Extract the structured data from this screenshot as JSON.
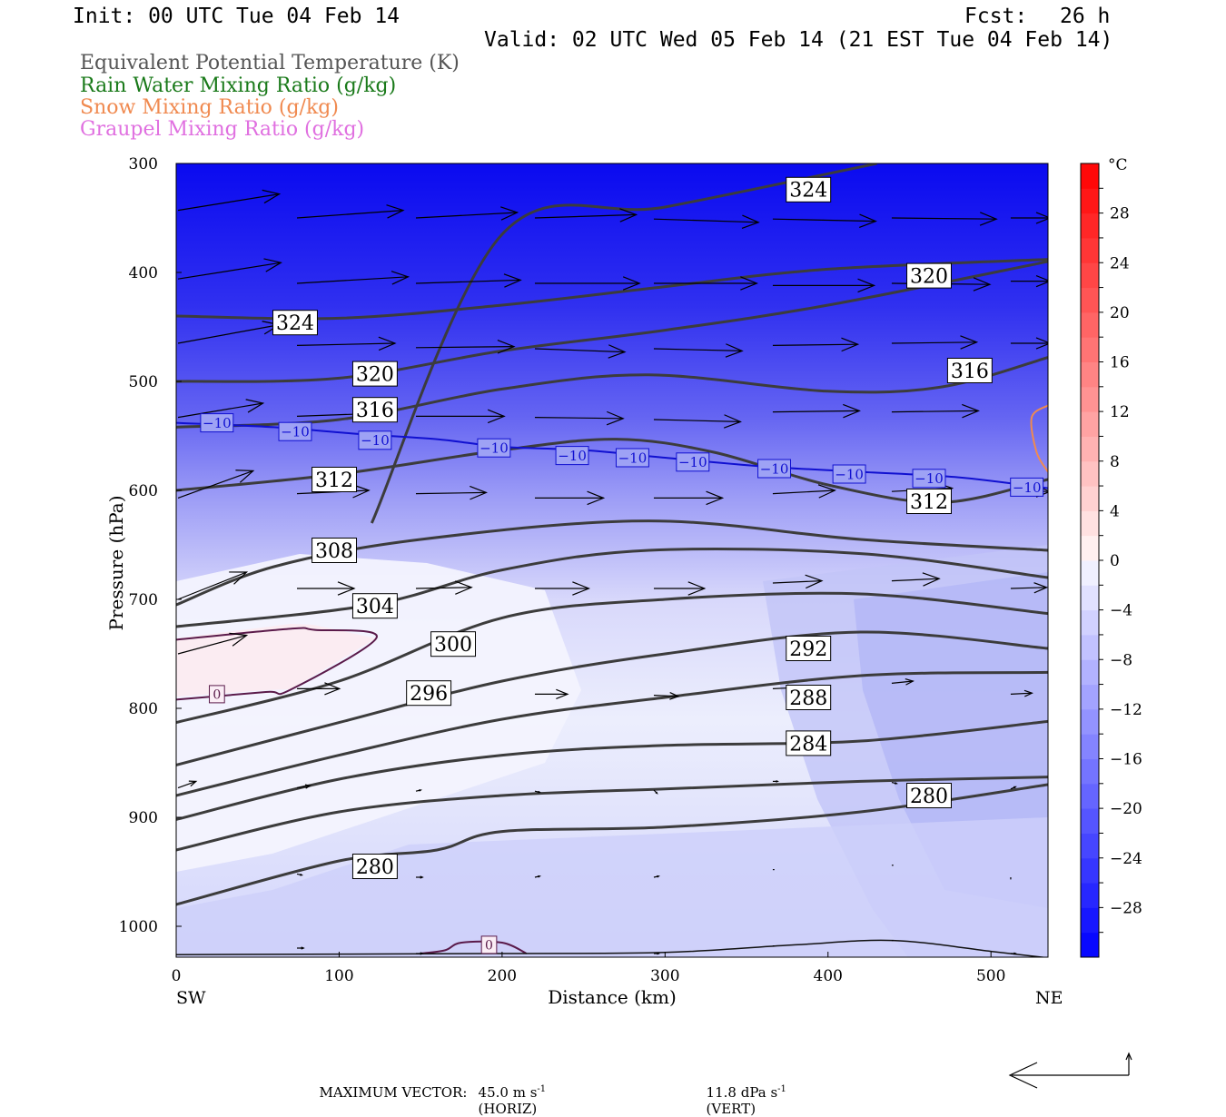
{
  "header": {
    "init": "Init: 00 UTC Tue 04 Feb 14",
    "fcst_label": "Fcst:",
    "fcst_value": "26 h",
    "valid": "Valid: 02 UTC Wed 05 Feb 14 (21 EST Tue 04 Feb 14)"
  },
  "legend": [
    {
      "label": "Equivalent Potential Temperature (K)",
      "color": "#555555"
    },
    {
      "label": "Rain Water Mixing Ratio (g/kg)",
      "color": "#1a7a1a"
    },
    {
      "label": "Snow Mixing Ratio (g/kg)",
      "color": "#f08a50"
    },
    {
      "label": "Graupel Mixing Ratio (g/kg)",
      "color": "#e070e0"
    }
  ],
  "footer": {
    "max_vector_label": "MAXIMUM VECTOR:",
    "horiz_value": "45.0 m s",
    "horiz_sup": "-1",
    "horiz_tag": "(HORIZ)",
    "vert_value": "11.8 dPa s",
    "vert_sup": "-1",
    "vert_tag": "(VERT)"
  },
  "chart_data": {
    "type": "cross-section",
    "xlabel": "Distance (km)",
    "ylabel": "Pressure (hPa)",
    "x_ticks": [
      0,
      100,
      200,
      300,
      400,
      500
    ],
    "y_ticks": [
      300,
      400,
      500,
      600,
      700,
      800,
      900,
      1000
    ],
    "xlim": [
      0,
      535
    ],
    "ylim": [
      1030,
      300
    ],
    "x_end_labels": {
      "left": "SW",
      "right": "NE"
    },
    "colorbar": {
      "unit": "°C",
      "tick_labels": [
        "28",
        "24",
        "20",
        "16",
        "12",
        "8",
        "4",
        "0",
        "−4",
        "−8",
        "−12",
        "−16",
        "−20",
        "−24",
        "−28"
      ],
      "tick_values": [
        28,
        24,
        20,
        16,
        12,
        8,
        4,
        0,
        -4,
        -8,
        -12,
        -16,
        -20,
        -24,
        -28
      ],
      "range": [
        -32,
        32
      ],
      "step": 2
    },
    "theta_e_contours": [
      {
        "label": "324",
        "points": [
          [
            0,
            440
          ],
          [
            100,
            442
          ],
          [
            200,
            430
          ],
          [
            300,
            413
          ],
          [
            400,
            397
          ],
          [
            535,
            388
          ]
        ],
        "labels_at": [
          [
            73,
            446
          ]
        ]
      },
      {
        "label": "324",
        "points": [
          [
            120,
            630
          ],
          [
            200,
            365
          ],
          [
            300,
            340
          ],
          [
            430,
            300
          ]
        ],
        "labels_at": [
          [
            388,
            324
          ]
        ]
      },
      {
        "label": "320",
        "points": [
          [
            0,
            500
          ],
          [
            100,
            497
          ],
          [
            200,
            472
          ],
          [
            300,
            453
          ],
          [
            400,
            430
          ],
          [
            535,
            390
          ]
        ],
        "labels_at": [
          [
            122,
            493
          ],
          [
            462,
            403
          ]
        ]
      },
      {
        "label": "316",
        "points": [
          [
            0,
            542
          ],
          [
            100,
            535
          ],
          [
            200,
            507
          ],
          [
            290,
            494
          ],
          [
            400,
            509
          ],
          [
            470,
            505
          ],
          [
            535,
            478
          ]
        ],
        "labels_at": [
          [
            122,
            526
          ],
          [
            487,
            490
          ]
        ]
      },
      {
        "label": "312",
        "points": [
          [
            0,
            600
          ],
          [
            100,
            585
          ],
          [
            200,
            563
          ],
          [
            270,
            553
          ],
          [
            330,
            565
          ],
          [
            400,
            595
          ],
          [
            470,
            611
          ],
          [
            535,
            590
          ]
        ],
        "labels_at": [
          [
            97,
            590
          ],
          [
            462,
            610
          ]
        ]
      },
      {
        "label": "308",
        "points": [
          [
            0,
            705
          ],
          [
            60,
            670
          ],
          [
            150,
            645
          ],
          [
            290,
            628
          ],
          [
            420,
            645
          ],
          [
            535,
            655
          ]
        ],
        "labels_at": [
          [
            97,
            655
          ]
        ]
      },
      {
        "label": "304",
        "points": [
          [
            0,
            725
          ],
          [
            120,
            705
          ],
          [
            200,
            673
          ],
          [
            290,
            655
          ],
          [
            420,
            658
          ],
          [
            535,
            680
          ]
        ],
        "labels_at": [
          [
            122,
            706
          ]
        ]
      },
      {
        "label": "300",
        "points": [
          [
            0,
            813
          ],
          [
            100,
            775
          ],
          [
            200,
            717
          ],
          [
            300,
            700
          ],
          [
            420,
            695
          ],
          [
            535,
            713
          ]
        ],
        "labels_at": [
          [
            170,
            741
          ]
        ]
      },
      {
        "label": "296",
        "points": [
          [
            0,
            852
          ],
          [
            100,
            813
          ],
          [
            200,
            775
          ],
          [
            300,
            750
          ],
          [
            420,
            730
          ],
          [
            535,
            745
          ]
        ],
        "labels_at": [
          [
            155,
            786
          ]
        ]
      },
      {
        "label": "292",
        "points": [
          [
            0,
            880
          ],
          [
            100,
            843
          ],
          [
            200,
            810
          ],
          [
            300,
            790
          ],
          [
            420,
            770
          ],
          [
            535,
            767
          ]
        ],
        "labels_at": [
          [
            388,
            745
          ]
        ]
      },
      {
        "label": "288",
        "points": [
          [
            0,
            902
          ],
          [
            100,
            865
          ],
          [
            200,
            843
          ],
          [
            300,
            834
          ],
          [
            420,
            830
          ],
          [
            535,
            812
          ]
        ],
        "labels_at": [
          [
            388,
            790
          ]
        ]
      },
      {
        "label": "284",
        "points": [
          [
            0,
            930
          ],
          [
            100,
            895
          ],
          [
            200,
            880
          ],
          [
            300,
            874
          ],
          [
            420,
            867
          ],
          [
            535,
            863
          ]
        ],
        "labels_at": [
          [
            388,
            832
          ]
        ]
      },
      {
        "label": "280",
        "points": [
          [
            0,
            980
          ],
          [
            100,
            940
          ],
          [
            160,
            930
          ],
          [
            200,
            913
          ],
          [
            300,
            909
          ],
          [
            420,
            895
          ],
          [
            535,
            870
          ]
        ],
        "labels_at": [
          [
            122,
            945
          ],
          [
            462,
            880
          ]
        ]
      },
      {
        "label": "",
        "points": [
          [
            0,
            1026
          ],
          [
            200,
            1025
          ],
          [
            300,
            1024
          ],
          [
            380,
            1017
          ],
          [
            440,
            1013
          ],
          [
            500,
            1023
          ],
          [
            535,
            1029
          ]
        ],
        "labels_at": []
      }
    ],
    "temp_isotherm_m10": {
      "label": "−10",
      "points": [
        [
          0,
          538
        ],
        [
          60,
          542
        ],
        [
          110,
          548
        ],
        [
          160,
          553
        ],
        [
          200,
          560
        ],
        [
          250,
          563
        ],
        [
          300,
          570
        ],
        [
          360,
          578
        ],
        [
          420,
          583
        ],
        [
          480,
          588
        ],
        [
          535,
          598
        ]
      ],
      "labels_at": [
        [
          25,
          538
        ],
        [
          73,
          546
        ],
        [
          122,
          554
        ],
        [
          195,
          561
        ],
        [
          243,
          568
        ],
        [
          280,
          570
        ],
        [
          317,
          574
        ],
        [
          367,
          580
        ],
        [
          413,
          585
        ],
        [
          462,
          589
        ],
        [
          522,
          597
        ]
      ]
    },
    "rain_zero_contour": {
      "label": "0",
      "points": [
        [
          0,
          737
        ],
        [
          70,
          727
        ],
        [
          85,
          728
        ],
        [
          123,
          735
        ],
        [
          70,
          783
        ],
        [
          55,
          785
        ],
        [
          0,
          792
        ]
      ],
      "labels_at": [
        [
          25,
          787
        ]
      ]
    },
    "rain_zero_contour_surface": {
      "label": "0",
      "points": [
        [
          150,
          1025
        ],
        [
          165,
          1022
        ],
        [
          175,
          1015
        ],
        [
          200,
          1015
        ],
        [
          215,
          1025
        ]
      ],
      "labels_at": [
        [
          192,
          1017
        ]
      ]
    },
    "snow_contour": {
      "points": [
        [
          535,
          522
        ],
        [
          525,
          533
        ],
        [
          528,
          565
        ],
        [
          535,
          583
        ]
      ]
    },
    "wind_vectors": [
      {
        "x": 0,
        "p": 343,
        "dx": 62,
        "dp": -15
      },
      {
        "x": 73,
        "p": 350,
        "dx": 65,
        "dp": -7
      },
      {
        "x": 146,
        "p": 350,
        "dx": 62,
        "dp": -5
      },
      {
        "x": 219,
        "p": 350,
        "dx": 62,
        "dp": -3
      },
      {
        "x": 292,
        "p": 351,
        "dx": 64,
        "dp": 3
      },
      {
        "x": 365,
        "p": 351,
        "dx": 63,
        "dp": 2
      },
      {
        "x": 438,
        "p": 350,
        "dx": 64,
        "dp": 1
      },
      {
        "x": 511,
        "p": 350,
        "dx": 24,
        "dp": 0
      },
      {
        "x": 0,
        "p": 406,
        "dx": 63,
        "dp": -15
      },
      {
        "x": 73,
        "p": 410,
        "dx": 68,
        "dp": -6
      },
      {
        "x": 146,
        "p": 410,
        "dx": 64,
        "dp": -3
      },
      {
        "x": 219,
        "p": 410,
        "dx": 64,
        "dp": 0
      },
      {
        "x": 292,
        "p": 410,
        "dx": 63,
        "dp": 0
      },
      {
        "x": 365,
        "p": 412,
        "dx": 62,
        "dp": 0
      },
      {
        "x": 438,
        "p": 410,
        "dx": 60,
        "dp": 1
      },
      {
        "x": 511,
        "p": 408,
        "dx": 24,
        "dp": 0
      },
      {
        "x": 0,
        "p": 465,
        "dx": 62,
        "dp": -17
      },
      {
        "x": 73,
        "p": 467,
        "dx": 60,
        "dp": -2
      },
      {
        "x": 146,
        "p": 469,
        "dx": 60,
        "dp": -1
      },
      {
        "x": 219,
        "p": 470,
        "dx": 55,
        "dp": 3
      },
      {
        "x": 292,
        "p": 470,
        "dx": 54,
        "dp": 2
      },
      {
        "x": 365,
        "p": 467,
        "dx": 52,
        "dp": -1
      },
      {
        "x": 438,
        "p": 465,
        "dx": 52,
        "dp": -1
      },
      {
        "x": 511,
        "p": 465,
        "dx": 24,
        "dp": 0
      },
      {
        "x": 0,
        "p": 533,
        "dx": 52,
        "dp": -13
      },
      {
        "x": 73,
        "p": 532,
        "dx": 55,
        "dp": -3
      },
      {
        "x": 146,
        "p": 532,
        "dx": 54,
        "dp": 0
      },
      {
        "x": 219,
        "p": 533,
        "dx": 54,
        "dp": 1
      },
      {
        "x": 292,
        "p": 535,
        "dx": 53,
        "dp": 2
      },
      {
        "x": 365,
        "p": 528,
        "dx": 53,
        "dp": -1
      },
      {
        "x": 438,
        "p": 528,
        "dx": 53,
        "dp": -1
      },
      {
        "x": 0,
        "p": 607,
        "dx": 46,
        "dp": -25
      },
      {
        "x": 73,
        "p": 603,
        "dx": 44,
        "dp": -3
      },
      {
        "x": 146,
        "p": 603,
        "dx": 43,
        "dp": -1
      },
      {
        "x": 219,
        "p": 607,
        "dx": 42,
        "dp": 0
      },
      {
        "x": 292,
        "p": 607,
        "dx": 42,
        "dp": 0
      },
      {
        "x": 365,
        "p": 603,
        "dx": 38,
        "dp": -3
      },
      {
        "x": 438,
        "p": 601,
        "dx": 37,
        "dp": -3
      },
      {
        "x": 511,
        "p": 601,
        "dx": 24,
        "dp": 0
      },
      {
        "x": 0,
        "p": 700,
        "dx": 42,
        "dp": -25
      },
      {
        "x": 73,
        "p": 690,
        "dx": 35,
        "dp": 0
      },
      {
        "x": 146,
        "p": 690,
        "dx": 34,
        "dp": -1
      },
      {
        "x": 219,
        "p": 690,
        "dx": 33,
        "dp": 0
      },
      {
        "x": 292,
        "p": 690,
        "dx": 31,
        "dp": 0
      },
      {
        "x": 365,
        "p": 685,
        "dx": 30,
        "dp": -2
      },
      {
        "x": 438,
        "p": 683,
        "dx": 29,
        "dp": -2
      },
      {
        "x": 511,
        "p": 690,
        "dx": 22,
        "dp": -1
      },
      {
        "x": 0,
        "p": 750,
        "dx": 42,
        "dp": -17
      },
      {
        "x": 73,
        "p": 782,
        "dx": 26,
        "dp": 0
      },
      {
        "x": 219,
        "p": 787,
        "dx": 20,
        "dp": 0
      },
      {
        "x": 292,
        "p": 788,
        "dx": 15,
        "dp": 1
      },
      {
        "x": 365,
        "p": 782,
        "dx": 14,
        "dp": -1
      },
      {
        "x": 438,
        "p": 777,
        "dx": 13,
        "dp": -2
      },
      {
        "x": 511,
        "p": 787,
        "dx": 13,
        "dp": -1
      },
      {
        "x": 0,
        "p": 873,
        "dx": 11,
        "dp": -6
      },
      {
        "x": 73,
        "p": 873,
        "dx": 8,
        "dp": -2
      },
      {
        "x": 146,
        "p": 876,
        "dx": 3,
        "dp": -1
      },
      {
        "x": 219,
        "p": 876,
        "dx": 3,
        "dp": 1
      },
      {
        "x": 292,
        "p": 875,
        "dx": 2,
        "dp": 3
      },
      {
        "x": 365,
        "p": 867,
        "dx": 3,
        "dp": 0
      },
      {
        "x": 438,
        "p": 868,
        "dx": 3,
        "dp": 1
      },
      {
        "x": 511,
        "p": 874,
        "dx": 3,
        "dp": -2
      },
      {
        "x": 73,
        "p": 952,
        "dx": 3,
        "dp": 1
      },
      {
        "x": 146,
        "p": 955,
        "dx": 4,
        "dp": 0
      },
      {
        "x": 219,
        "p": 955,
        "dx": 3,
        "dp": -1
      },
      {
        "x": 292,
        "p": 955,
        "dx": 3,
        "dp": -1
      },
      {
        "x": 365,
        "p": 948,
        "dx": 1,
        "dp": 0
      },
      {
        "x": 438,
        "p": 944,
        "dx": 1,
        "dp": 0
      },
      {
        "x": 511,
        "p": 955,
        "dx": 0,
        "dp": 2
      },
      {
        "x": 73,
        "p": 1020,
        "dx": 4,
        "dp": 0
      },
      {
        "x": 146,
        "p": 1025,
        "dx": 4,
        "dp": 0
      },
      {
        "x": 292,
        "p": 1025,
        "dx": 3,
        "dp": 0
      },
      {
        "x": 365,
        "p": 1018,
        "dx": 1,
        "dp": 0
      },
      {
        "x": 438,
        "p": 1013,
        "dx": 1,
        "dp": 0
      },
      {
        "x": 511,
        "p": 1025,
        "dx": 3,
        "dp": 0
      }
    ]
  }
}
